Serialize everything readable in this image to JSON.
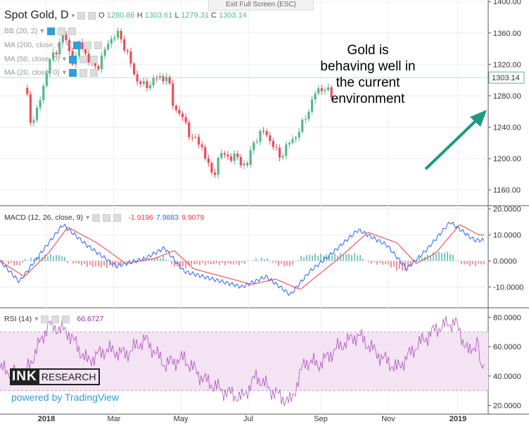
{
  "window": {
    "exit_fullscreen": "Exit Full Screen (ESC)"
  },
  "main": {
    "symbol": "Spot Gold, D",
    "ohlc": {
      "o_label": "O",
      "o": "1280.86",
      "h_label": "H",
      "h": "1303.61",
      "l_label": "L",
      "l": "1279.31",
      "c_label": "C",
      "c": "1303.14"
    },
    "indicators": [
      "BB (20, 2)",
      "MA (200, close, 0)",
      "MA (50, close, 0)",
      "MA (20, close, 0)"
    ],
    "last_price": "1303.14",
    "annotation": "Gold is behaving well in the current environment"
  },
  "macd": {
    "label": "MACD (12, 26, close, 9)",
    "v1": "-1.9196",
    "v2": "7.9883",
    "v3": "9.9079"
  },
  "rsi": {
    "label": "RSI (14)",
    "value": "66.6727"
  },
  "branding": {
    "ink_left": "INK",
    "ink_right": "RESEARCH",
    "powered": "powered by TradingView"
  },
  "colors": {
    "up": "#53b987",
    "down": "#eb4d5c",
    "macd_line": "#2962ff",
    "signal_line": "#f23645",
    "rsi_line": "#9c27b0",
    "rsi_band": "#f3e3f3",
    "accent": "#2d9fd9"
  },
  "chart_data": [
    {
      "type": "candlestick",
      "title": "Spot Gold, D",
      "x_ticks": [
        "2018",
        "Mar",
        "May",
        "Jul",
        "Sep",
        "Nov",
        "2019"
      ],
      "y_ticks": [
        "1400.00",
        "1360.00",
        "1320.00",
        "1280.00",
        "1240.00",
        "1200.00",
        "1160.00"
      ],
      "ylim": [
        1140,
        1402
      ],
      "close_path": [
        [
          "2017-12-04",
          1290
        ],
        [
          "2017-12-12",
          1242
        ],
        [
          "2017-12-20",
          1262
        ],
        [
          "2018-01-03",
          1318
        ],
        [
          "2018-01-12",
          1335
        ],
        [
          "2018-01-25",
          1358
        ],
        [
          "2018-02-08",
          1318
        ],
        [
          "2018-02-16",
          1352
        ],
        [
          "2018-03-01",
          1318
        ],
        [
          "2018-03-15",
          1320
        ],
        [
          "2018-03-27",
          1352
        ],
        [
          "2018-04-11",
          1358
        ],
        [
          "2018-04-23",
          1328
        ],
        [
          "2018-05-01",
          1305
        ],
        [
          "2018-05-15",
          1290
        ],
        [
          "2018-05-25",
          1300
        ],
        [
          "2018-06-14",
          1305
        ],
        [
          "2018-06-22",
          1270
        ],
        [
          "2018-07-03",
          1255
        ],
        [
          "2018-07-17",
          1228
        ],
        [
          "2018-08-01",
          1215
        ],
        [
          "2018-08-15",
          1175
        ],
        [
          "2018-08-24",
          1205
        ],
        [
          "2018-09-13",
          1202
        ],
        [
          "2018-10-01",
          1191
        ],
        [
          "2018-10-11",
          1225
        ],
        [
          "2018-10-26",
          1235
        ],
        [
          "2018-11-13",
          1202
        ],
        [
          "2018-11-30",
          1222
        ],
        [
          "2018-12-14",
          1240
        ],
        [
          "2018-12-31",
          1280
        ],
        [
          "2019-01-11",
          1292
        ],
        [
          "2019-01-24",
          1280
        ],
        [
          "2019-01-28",
          1303.14
        ]
      ],
      "last": 1303.14,
      "grid": true
    },
    {
      "type": "line",
      "title": "MACD (12, 26, close, 9)",
      "y_ticks": [
        "20.0000",
        "10.0000",
        "0.0000",
        "-10.0000"
      ],
      "ylim": [
        -18,
        21
      ],
      "series": [
        {
          "name": "MACD",
          "color": "#2962ff",
          "values": [
            [
              0,
              0
            ],
            [
              0.04,
              -8
            ],
            [
              0.08,
              2
            ],
            [
              0.13,
              14
            ],
            [
              0.18,
              6
            ],
            [
              0.24,
              -2
            ],
            [
              0.3,
              1
            ],
            [
              0.34,
              5
            ],
            [
              0.38,
              -4
            ],
            [
              0.44,
              -7
            ],
            [
              0.5,
              -10
            ],
            [
              0.55,
              -6
            ],
            [
              0.6,
              -13
            ],
            [
              0.64,
              -4
            ],
            [
              0.68,
              2
            ],
            [
              0.74,
              12
            ],
            [
              0.8,
              6
            ],
            [
              0.84,
              -3
            ],
            [
              0.88,
              4
            ],
            [
              0.93,
              15
            ],
            [
              0.98,
              8
            ]
          ]
        },
        {
          "name": "Signal",
          "color": "#f23645",
          "values": [
            [
              0,
              0
            ],
            [
              0.05,
              -6
            ],
            [
              0.1,
              3
            ],
            [
              0.14,
              13
            ],
            [
              0.2,
              7
            ],
            [
              0.26,
              -1
            ],
            [
              0.32,
              1
            ],
            [
              0.36,
              4
            ],
            [
              0.4,
              -3
            ],
            [
              0.46,
              -6
            ],
            [
              0.52,
              -9
            ],
            [
              0.57,
              -7
            ],
            [
              0.62,
              -11
            ],
            [
              0.66,
              -5
            ],
            [
              0.7,
              1
            ],
            [
              0.76,
              11
            ],
            [
              0.82,
              7
            ],
            [
              0.86,
              -1
            ],
            [
              0.9,
              3
            ],
            [
              0.95,
              14
            ],
            [
              0.99,
              10
            ]
          ]
        }
      ],
      "last": [
        -1.9196,
        7.9883,
        9.9079
      ]
    },
    {
      "type": "line",
      "title": "RSI (14)",
      "y_ticks": [
        "80.0000",
        "60.0000",
        "40.0000",
        "20.0000"
      ],
      "ylim": [
        14,
        86
      ],
      "band": [
        30,
        70
      ],
      "series": [
        {
          "name": "RSI",
          "color": "#9c27b0",
          "values": [
            [
              0,
              45
            ],
            [
              0.05,
              40
            ],
            [
              0.1,
              75
            ],
            [
              0.14,
              70
            ],
            [
              0.18,
              50
            ],
            [
              0.22,
              58
            ],
            [
              0.26,
              55
            ],
            [
              0.3,
              65
            ],
            [
              0.34,
              48
            ],
            [
              0.38,
              52
            ],
            [
              0.42,
              38
            ],
            [
              0.46,
              30
            ],
            [
              0.5,
              25
            ],
            [
              0.53,
              40
            ],
            [
              0.56,
              30
            ],
            [
              0.6,
              22
            ],
            [
              0.63,
              50
            ],
            [
              0.66,
              48
            ],
            [
              0.7,
              60
            ],
            [
              0.74,
              68
            ],
            [
              0.78,
              55
            ],
            [
              0.82,
              45
            ],
            [
              0.86,
              60
            ],
            [
              0.9,
              72
            ],
            [
              0.94,
              77
            ],
            [
              0.97,
              55
            ],
            [
              0.99,
              66.67
            ]
          ]
        }
      ],
      "last": 66.6727
    }
  ]
}
